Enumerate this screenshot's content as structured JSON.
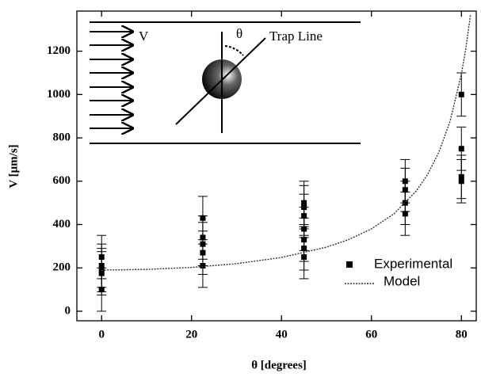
{
  "chart_data": {
    "type": "scatter",
    "x_label": "θ [degrees]",
    "y_label": "V [μm/s]",
    "xlim": [
      -5.5,
      83.3
    ],
    "ylim": [
      -44,
      1385
    ],
    "xticks": [
      0,
      20,
      40,
      60,
      80
    ],
    "yticks": [
      0,
      200,
      400,
      600,
      800,
      1000,
      1200
    ],
    "legend": "lower right",
    "annotations": [
      "V",
      "θ",
      "Trap Line"
    ],
    "series": [
      {
        "name": "Experimental",
        "style": "points",
        "color": "#000000",
        "x": [
          0,
          0,
          0,
          0,
          0,
          22.5,
          22.5,
          22.5,
          22.5,
          22.5,
          45,
          45,
          45,
          45,
          45,
          45,
          45,
          67.5,
          67.5,
          67.5,
          67.5,
          80,
          80,
          80,
          80
        ],
        "values": [
          250,
          210,
          190,
          175,
          100,
          430,
          340,
          310,
          270,
          210,
          500,
          480,
          440,
          380,
          330,
          290,
          250,
          600,
          560,
          500,
          450,
          1000,
          750,
          620,
          600
        ],
        "errors": [
          100,
          100,
          100,
          100,
          100,
          100,
          100,
          100,
          100,
          100,
          100,
          100,
          100,
          100,
          100,
          100,
          100,
          100,
          100,
          100,
          100,
          100,
          100,
          100,
          100
        ]
      },
      {
        "name": "Model",
        "style": "dotted-line",
        "color": "#333333",
        "x": [
          0,
          10,
          20,
          30,
          40,
          50,
          55,
          60,
          65,
          70,
          72.5,
          75,
          77.5,
          80,
          81,
          82
        ],
        "values": [
          190,
          192.9,
          202.2,
          219.4,
          248.0,
          295.6,
          331.3,
          380,
          449.6,
          555.5,
          631.8,
          734.1,
          877.9,
          1094.2,
          1214.6,
          1365.2
        ]
      }
    ]
  }
}
